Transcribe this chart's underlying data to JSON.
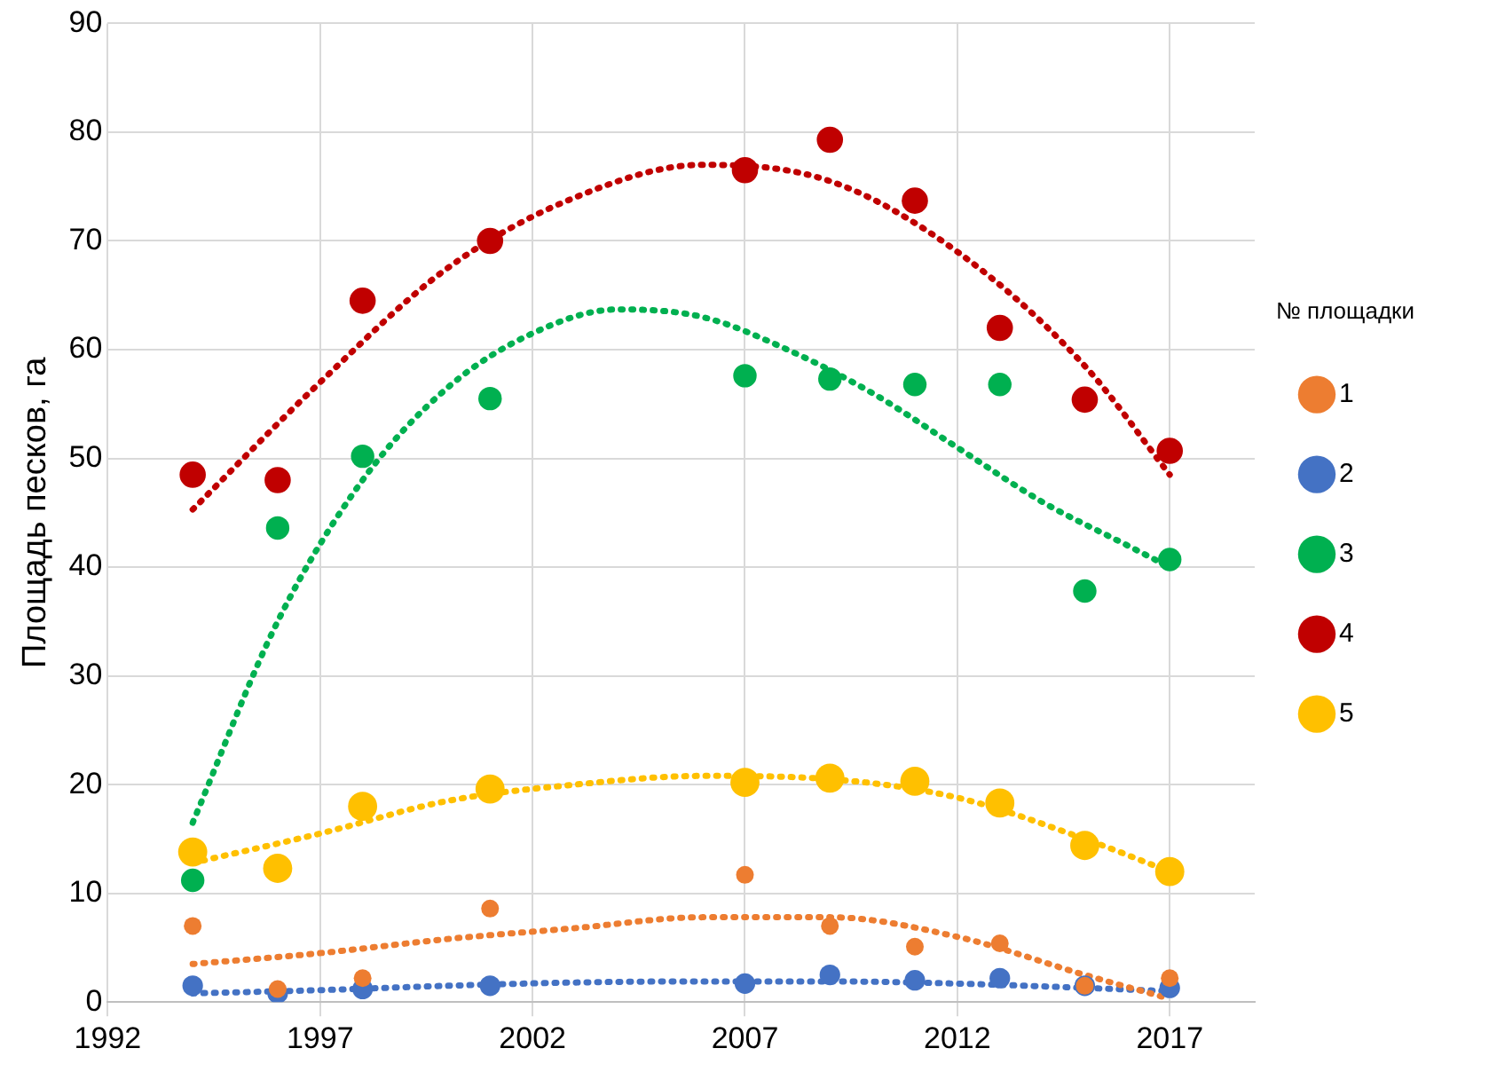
{
  "chart_data": {
    "type": "scatter",
    "ylabel": "Площадь песков, га",
    "legend_title": "№ площадки",
    "legend": "right",
    "marker": "circle",
    "grid": true,
    "x": [
      1994,
      1996,
      1998,
      2001,
      2007,
      2009,
      2011,
      2013,
      2015,
      2017
    ],
    "xlim": [
      1992,
      2019
    ],
    "xticks": [
      1992,
      1997,
      2002,
      2007,
      2012,
      2017
    ],
    "ylim": [
      0,
      90
    ],
    "yticks": [
      0,
      10,
      20,
      30,
      40,
      50,
      60,
      70,
      80,
      90
    ],
    "series": [
      {
        "name": "1",
        "color": "#ed7d31",
        "values": [
          7,
          1.2,
          2.2,
          8.6,
          11.7,
          7,
          5.1,
          5.4,
          1.5,
          2.2
        ]
      },
      {
        "name": "2",
        "color": "#4472c4",
        "values": [
          1.5,
          0.8,
          1.2,
          1.5,
          1.7,
          2.5,
          2,
          2.2,
          1.5,
          1.3
        ]
      },
      {
        "name": "3",
        "color": "#00b050",
        "values": [
          11.2,
          43.6,
          50.2,
          55.5,
          57.6,
          57.3,
          56.8,
          56.8,
          37.8,
          40.7
        ]
      },
      {
        "name": "4",
        "color": "#c00000",
        "values": [
          48.5,
          48,
          64.5,
          70,
          76.5,
          79.3,
          73.7,
          62,
          55.4,
          50.7
        ]
      },
      {
        "name": "5",
        "color": "#ffc000",
        "values": [
          13.8,
          12.3,
          18,
          19.6,
          20.2,
          20.6,
          20.3,
          18.3,
          14.4,
          12
        ]
      },
      {
        "type": "line",
        "marker": "none",
        "line_style": "dotted",
        "color": "#ed7d31",
        "x": [
          1994,
          1997,
          2000,
          2003,
          2006,
          2009,
          2012,
          2015,
          2017
        ],
        "values": [
          3.5,
          4.5,
          5.8,
          6.8,
          7.8,
          7.8,
          6,
          2.5,
          0.3
        ]
      },
      {
        "type": "line",
        "marker": "none",
        "line_style": "dotted",
        "color": "#4472c4",
        "x": [
          1994,
          1997,
          2000,
          2003,
          2006,
          2009,
          2012,
          2015,
          2017
        ],
        "values": [
          0.8,
          1.1,
          1.5,
          1.8,
          1.9,
          1.9,
          1.7,
          1.3,
          1
        ]
      },
      {
        "type": "line",
        "marker": "none",
        "line_style": "dotted",
        "color": "#00b050",
        "x": [
          1994,
          1996,
          1998,
          2000,
          2002,
          2004,
          2006,
          2008,
          2010,
          2012,
          2014,
          2016,
          2017
        ],
        "values": [
          16.5,
          35,
          48,
          56.5,
          61.5,
          63.7,
          63,
          60,
          56,
          51,
          46,
          42,
          40
        ]
      },
      {
        "type": "line",
        "marker": "none",
        "line_style": "dotted",
        "color": "#c00000",
        "x": [
          1994,
          1997,
          2000,
          2003,
          2006,
          2009,
          2012,
          2015,
          2017
        ],
        "values": [
          45.3,
          57,
          67.5,
          74,
          77,
          75.5,
          69,
          58.5,
          48.5
        ]
      },
      {
        "type": "line",
        "marker": "none",
        "line_style": "dotted",
        "color": "#ffc000",
        "x": [
          1994,
          1997,
          2000,
          2003,
          2006,
          2009,
          2012,
          2015,
          2017
        ],
        "values": [
          12.8,
          15.5,
          18.5,
          20,
          20.8,
          20.5,
          18.8,
          15,
          12
        ]
      }
    ]
  }
}
